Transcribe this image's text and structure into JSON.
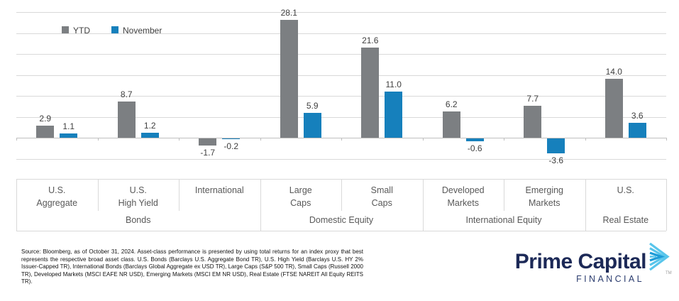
{
  "chart_data": {
    "type": "bar",
    "title": "",
    "categories": [
      "U.S. Aggregate",
      "U.S. High Yield",
      "International",
      "Large Caps",
      "Small Caps",
      "Developed Markets",
      "Emerging Markets",
      "U.S."
    ],
    "category_label_lines": [
      [
        "U.S.",
        "Aggregate"
      ],
      [
        "U.S.",
        "High Yield"
      ],
      [
        "International"
      ],
      [
        "Large",
        "Caps"
      ],
      [
        "Small",
        "Caps"
      ],
      [
        "Developed",
        "Markets"
      ],
      [
        "Emerging",
        "Markets"
      ],
      [
        "U.S."
      ]
    ],
    "groups": [
      {
        "label": "Bonds",
        "span": 3
      },
      {
        "label": "Domestic Equity",
        "span": 2
      },
      {
        "label": "International Equity",
        "span": 2
      },
      {
        "label": "Real Estate",
        "span": 1
      }
    ],
    "series": [
      {
        "name": "YTD",
        "color": "#7C7F82",
        "values": [
          2.9,
          8.7,
          -1.7,
          28.1,
          21.6,
          6.2,
          7.7,
          14.0
        ]
      },
      {
        "name": "November",
        "color": "#1680BC",
        "values": [
          1.1,
          1.2,
          -0.2,
          5.9,
          11.0,
          -0.6,
          -3.6,
          3.6
        ]
      }
    ],
    "ylim": [
      -5,
      30
    ],
    "grid_step": 5,
    "grid": true,
    "legend_position": "top-left",
    "value_label_decimals": 1,
    "colors": {
      "gridline": "#D9D9D9",
      "axis": "#BFBFBF",
      "value_label": "#3F3F3F",
      "category_label": "#595959"
    }
  },
  "footer": {
    "source_text": "Source: Bloomberg, as of October 31, 2024. Asset-class performance is presented by using total returns for an index proxy that best represents the respective broad asset class. U.S. Bonds (Barclays U.S. Aggregate Bond TR), U.S. High Yield (Barclays U.S. HY 2% Issuer-Capped TR), International Bonds (Barclays Global Aggregate ex USD TR), Large Caps (S&P 500 TR), Small Caps (Russell 2000 TR), Developed Markets (MSCI EAFE NR USD), Emerging Markets (MSCI EM NR USD), Real Estate (FTSE NAREIT All Equity REITS TR)."
  },
  "logo": {
    "name": "Prime Capital",
    "sub": "FINANCIAL",
    "trademark": "TM",
    "navy": "#1C2957",
    "sub_navy": "#2A3B6E",
    "light_blue": "#58C5EB",
    "mid_blue": "#1E9CD8"
  }
}
